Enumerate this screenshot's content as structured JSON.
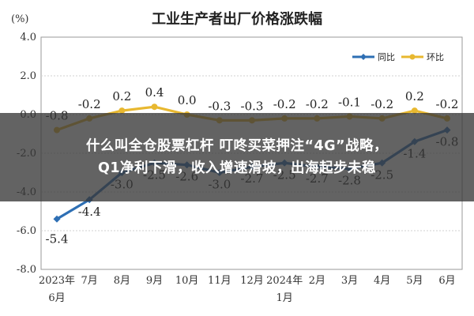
{
  "chart_data": {
    "type": "line",
    "title": "工业生产者出厂价格涨跌幅",
    "unit_label": "(%)",
    "ylim": [
      -8.0,
      4.0
    ],
    "yticks": [
      "4.0",
      "2.0",
      "0.0",
      "-2.0",
      "-4.0",
      "-6.0",
      "-8.0"
    ],
    "ytick_values": [
      4,
      2,
      0,
      -2,
      -4,
      -6,
      -8
    ],
    "categories": [
      "2023年6月",
      "7月",
      "8月",
      "9月",
      "10月",
      "11月",
      "12月",
      "2024年1月",
      "2月",
      "3月",
      "4月",
      "5月",
      "6月"
    ],
    "category_lines": [
      [
        "2023年",
        "6月"
      ],
      [
        "7月"
      ],
      [
        "8月"
      ],
      [
        "9月"
      ],
      [
        "10月"
      ],
      [
        "11月"
      ],
      [
        "12月"
      ],
      [
        "2024年",
        "1月"
      ],
      [
        "2月"
      ],
      [
        "3月"
      ],
      [
        "4月"
      ],
      [
        "5月"
      ],
      [
        "6月"
      ]
    ],
    "series": [
      {
        "name": "同比",
        "color": "#2e6fb4",
        "values": [
          -5.4,
          -4.4,
          -3.0,
          -2.5,
          -2.6,
          -3.0,
          -2.7,
          -2.5,
          -2.7,
          -2.8,
          -2.5,
          -1.4,
          -0.8
        ],
        "labels": [
          "-5.4",
          "-4.4",
          "-3.0",
          "-2.5",
          "-2.6",
          "-3.0",
          "-2.7",
          "-2.5",
          "-2.7",
          "-2.8",
          "-2.5",
          "-1.4",
          "-0.8"
        ]
      },
      {
        "name": "环比",
        "color": "#e8b830",
        "values": [
          -0.8,
          -0.2,
          0.2,
          0.4,
          0.0,
          -0.3,
          -0.3,
          -0.2,
          -0.2,
          -0.1,
          -0.2,
          0.2,
          -0.2
        ],
        "labels": [
          "-0.8",
          "-0.2",
          "0.2",
          "0.4",
          "0.0",
          "-0.3",
          "-0.3",
          "-0.2",
          "-0.2",
          "-0.1",
          "-0.2",
          "0.2",
          "-0.2"
        ]
      }
    ],
    "legend_position": "top-right",
    "grid": true
  },
  "overlay": {
    "line1": "什么叫全仓股票杠杆 叮咚买菜押注“4G”战略，",
    "line2": "Q1净利下滑，收入增速滑坡，出海起步未稳"
  }
}
